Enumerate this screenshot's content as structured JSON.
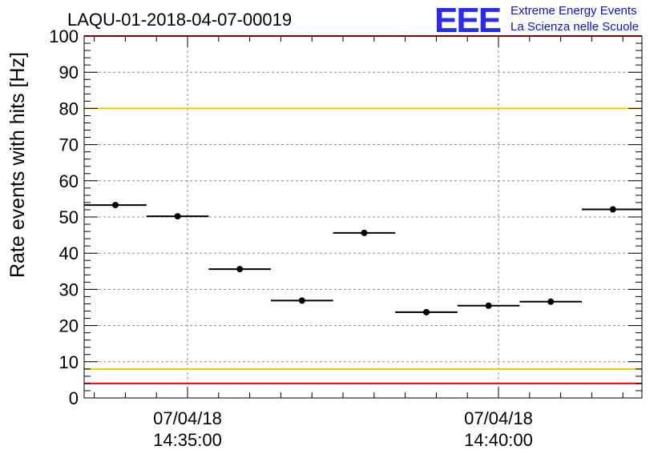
{
  "title": "LAQU-01-2018-04-07-00019",
  "logo": {
    "mark": "EEE",
    "line1": "Extreme Energy Events",
    "line2": "La Scienza nelle Scuole",
    "color": "#2a2af0"
  },
  "chart_data": {
    "type": "scatter",
    "title": "LAQU-01-2018-04-07-00019",
    "xlabel": "",
    "ylabel": "Rate events with hits [Hz]",
    "ylim": [
      0,
      100
    ],
    "grid": true,
    "x_ticks": [
      {
        "date": "07/04/18",
        "time": "14:35:00"
      },
      {
        "date": "07/04/18",
        "time": "14:40:00"
      }
    ],
    "y_ticks": [
      "0",
      "10",
      "20",
      "30",
      "40",
      "50",
      "60",
      "70",
      "80",
      "90",
      "100"
    ],
    "y_values": [
      53.3,
      50.2,
      35.6,
      26.9,
      45.6,
      23.7,
      25.5,
      26.6,
      52.1
    ],
    "reference_lines": [
      {
        "value": 100,
        "color": "#ff0000"
      },
      {
        "value": 80,
        "color": "#f0c800"
      },
      {
        "value": 8,
        "color": "#f0c800"
      },
      {
        "value": 4,
        "color": "#ff0000"
      }
    ]
  }
}
